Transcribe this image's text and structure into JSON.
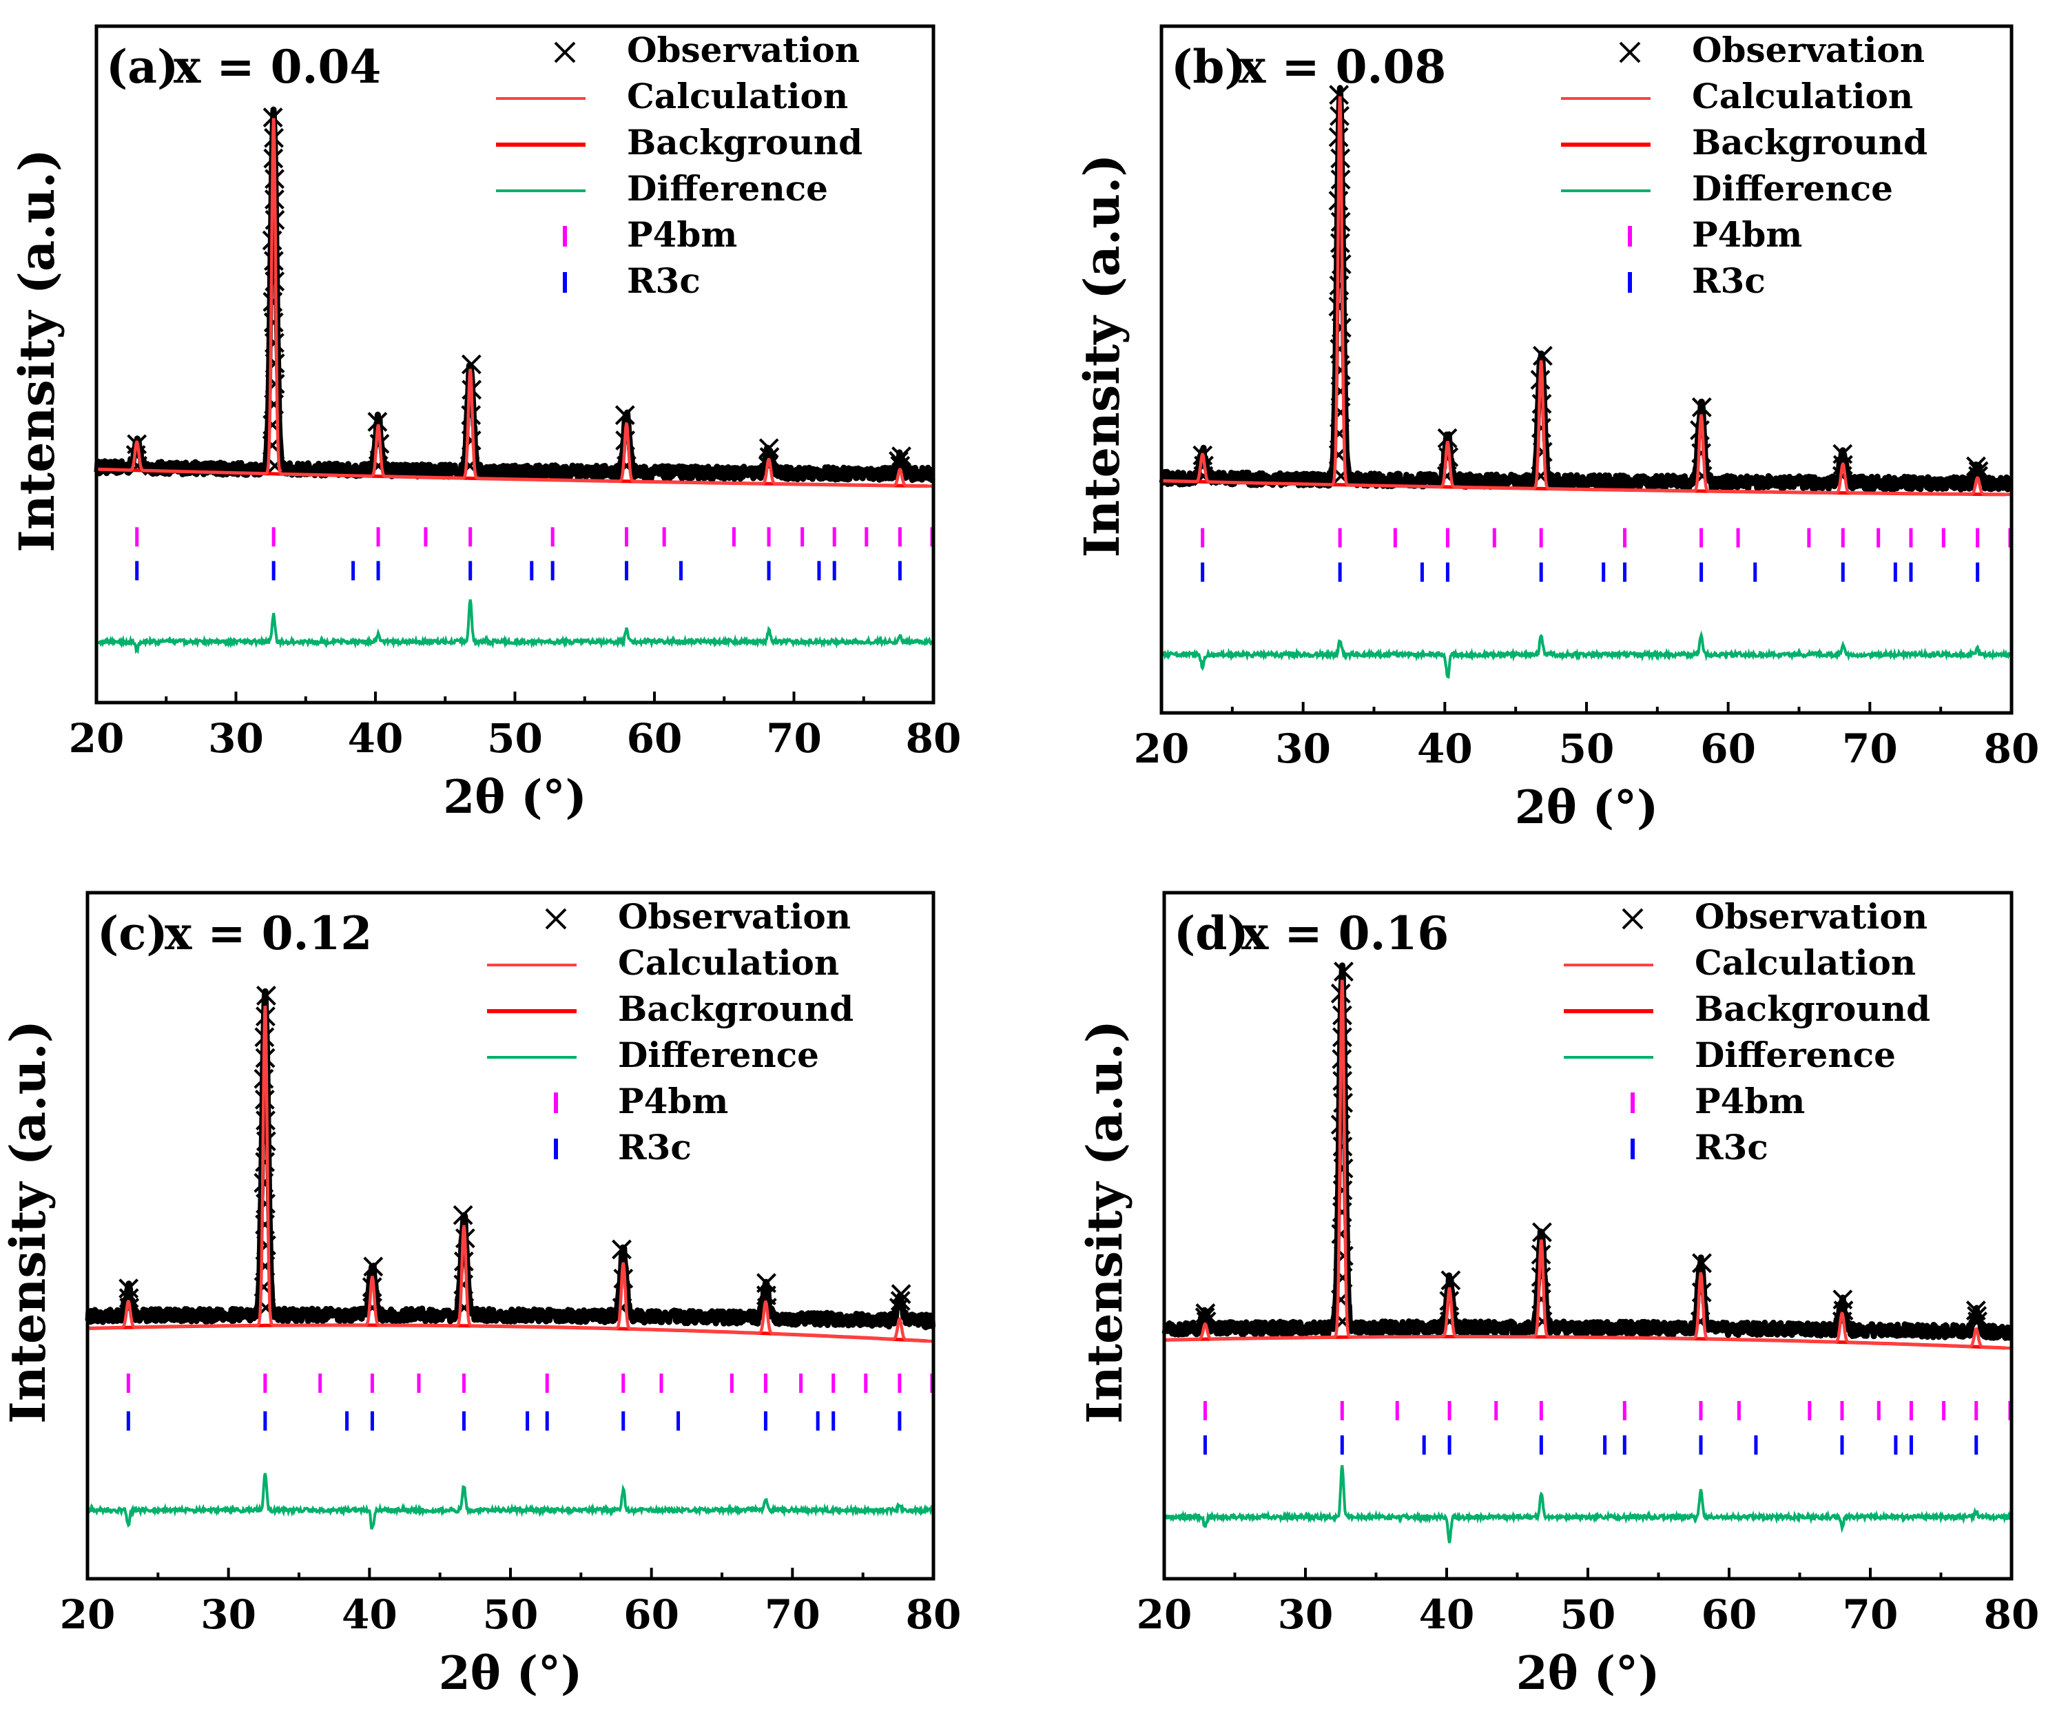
{
  "figure": {
    "colors": {
      "observation": "#000000",
      "calculation": "#ff4040",
      "background": "#ff0000",
      "difference": "#00b06b",
      "p4bm": "#ff00ff",
      "r3c": "#0000ff",
      "axes": "#000000"
    }
  },
  "chart_data": [
    {
      "type": "line",
      "panel_label": "(a)",
      "title": "x = 0.04",
      "xlabel": "2θ (°)",
      "ylabel": "Intensity (a.u.)",
      "xlim": [
        20,
        80
      ],
      "ylim": [
        0,
        100
      ],
      "xticks": [
        "20",
        "30",
        "40",
        "50",
        "60",
        "70",
        "80"
      ],
      "legend": [
        "Observation",
        "Calculation",
        "Background",
        "Difference",
        "P4bm",
        "R3c"
      ],
      "legend_position": "top-right",
      "baseline": 33.0,
      "peaks": [
        [
          22.9,
          4.2
        ],
        [
          32.7,
          52.5
        ],
        [
          40.2,
          7.5
        ],
        [
          46.8,
          16.0
        ],
        [
          58.0,
          8.5
        ],
        [
          68.2,
          3.6
        ],
        [
          77.6,
          2.4
        ]
      ],
      "background": {
        "start": 34.5,
        "mid": 32.8,
        "end": 32.0
      },
      "difference": {
        "level": 9.0,
        "spikes": [
          [
            22.9,
            -1.2
          ],
          [
            32.7,
            4.2
          ],
          [
            40.2,
            1.0
          ],
          [
            46.8,
            6.2
          ],
          [
            58.0,
            1.8
          ],
          [
            68.2,
            1.6
          ],
          [
            77.6,
            0.8
          ]
        ]
      },
      "p4bm_ticks": [
        22.9,
        32.7,
        40.2,
        43.6,
        46.8,
        52.7,
        58.0,
        60.7,
        65.7,
        68.2,
        70.6,
        72.9,
        75.2,
        77.6,
        79.9
      ],
      "r3c_ticks": [
        22.9,
        32.7,
        38.4,
        40.2,
        46.8,
        51.2,
        52.7,
        58.0,
        61.9,
        68.2,
        71.8,
        72.9,
        77.6
      ],
      "p4bm_level": 24.5,
      "r3c_level": 19.5
    },
    {
      "type": "line",
      "panel_label": "(b)",
      "title": "x = 0.08",
      "xlabel": "2θ (°)",
      "ylabel": "Intensity (a.u.)",
      "xlim": [
        20,
        80
      ],
      "ylim": [
        0,
        100
      ],
      "xticks": [
        "20",
        "30",
        "40",
        "50",
        "60",
        "70",
        "80"
      ],
      "legend": [
        "Observation",
        "Calculation",
        "Background",
        "Difference",
        "P4bm",
        "R3c"
      ],
      "legend_position": "top-right",
      "baseline": 32.5,
      "peaks": [
        [
          22.9,
          4.0
        ],
        [
          32.6,
          56.5
        ],
        [
          40.2,
          6.5
        ],
        [
          46.8,
          18.5
        ],
        [
          58.1,
          11.0
        ],
        [
          68.1,
          4.2
        ],
        [
          77.6,
          2.4
        ]
      ],
      "background": {
        "start": 33.8,
        "mid": 32.3,
        "end": 31.8
      },
      "difference": {
        "level": 8.5,
        "spikes": [
          [
            22.9,
            -2.0
          ],
          [
            32.6,
            2.2
          ],
          [
            40.2,
            -3.5
          ],
          [
            46.8,
            2.8
          ],
          [
            58.1,
            3.0
          ],
          [
            68.1,
            1.4
          ],
          [
            77.6,
            0.8
          ]
        ]
      },
      "p4bm_ticks": [
        22.9,
        32.6,
        36.5,
        40.2,
        43.5,
        46.8,
        52.7,
        58.1,
        60.7,
        65.7,
        68.1,
        70.6,
        72.9,
        75.2,
        77.6,
        79.9
      ],
      "r3c_ticks": [
        22.9,
        32.6,
        38.4,
        40.2,
        46.8,
        51.2,
        52.7,
        58.1,
        61.9,
        68.1,
        71.8,
        72.9,
        77.6
      ],
      "p4bm_level": 25.5,
      "r3c_level": 20.5
    },
    {
      "type": "line",
      "panel_label": "(c)",
      "title": "x = 0.12",
      "xlabel": "2θ (°)",
      "ylabel": "Intensity (a.u.)",
      "xlim": [
        20,
        80
      ],
      "ylim": [
        0,
        100
      ],
      "xticks": [
        "20",
        "30",
        "40",
        "50",
        "60",
        "70",
        "80"
      ],
      "legend": [
        "Observation",
        "Calculation",
        "Background",
        "Difference",
        "P4bm",
        "R3c"
      ],
      "legend_position": "top-right",
      "baseline": 37.5,
      "peaks": [
        [
          22.9,
          3.8
        ],
        [
          32.6,
          46.5
        ],
        [
          40.2,
          7.0
        ],
        [
          46.7,
          14.5
        ],
        [
          58.0,
          9.5
        ],
        [
          68.1,
          4.6
        ],
        [
          77.6,
          3.0
        ]
      ],
      "background": {
        "start": 36.5,
        "mid": 38.0,
        "end": 34.6
      },
      "difference": {
        "level": 10.0,
        "spikes": [
          [
            22.9,
            -2.2
          ],
          [
            32.6,
            5.5
          ],
          [
            40.2,
            -2.8
          ],
          [
            46.7,
            3.6
          ],
          [
            58.0,
            3.0
          ],
          [
            68.1,
            1.6
          ],
          [
            77.6,
            0.8
          ]
        ]
      },
      "p4bm_ticks": [
        22.9,
        32.6,
        36.5,
        40.2,
        43.5,
        46.7,
        52.6,
        58.0,
        60.7,
        65.7,
        68.1,
        70.6,
        72.9,
        75.2,
        77.6,
        79.9
      ],
      "r3c_ticks": [
        22.9,
        32.6,
        38.4,
        40.2,
        46.7,
        51.2,
        52.6,
        58.0,
        61.9,
        68.1,
        71.8,
        72.9,
        77.6
      ],
      "p4bm_level": 28.5,
      "r3c_level": 23.0
    },
    {
      "type": "line",
      "panel_label": "(d)",
      "title": "x = 0.16",
      "xlabel": "2θ (°)",
      "ylabel": "Intensity (a.u.)",
      "xlim": [
        20,
        80
      ],
      "ylim": [
        0,
        100
      ],
      "xticks": [
        "20",
        "30",
        "40",
        "50",
        "60",
        "70",
        "80"
      ],
      "legend": [
        "Observation",
        "Calculation",
        "Background",
        "Difference",
        "P4bm",
        "R3c"
      ],
      "legend_position": "top-right",
      "baseline": 35.5,
      "peaks": [
        [
          22.9,
          2.2
        ],
        [
          32.6,
          52.0
        ],
        [
          40.2,
          7.0
        ],
        [
          46.7,
          14.0
        ],
        [
          58.0,
          9.5
        ],
        [
          68.0,
          4.2
        ],
        [
          77.5,
          2.6
        ]
      ],
      "background": {
        "start": 34.8,
        "mid": 36.2,
        "end": 33.6
      },
      "difference": {
        "level": 9.0,
        "spikes": [
          [
            22.9,
            -1.5
          ],
          [
            32.6,
            7.5
          ],
          [
            40.2,
            -3.5
          ],
          [
            46.7,
            3.5
          ],
          [
            58.0,
            4.0
          ],
          [
            68.0,
            -1.4
          ],
          [
            77.5,
            0.8
          ]
        ]
      },
      "p4bm_ticks": [
        22.9,
        32.6,
        36.5,
        40.2,
        43.5,
        46.7,
        52.6,
        58.0,
        60.7,
        65.7,
        68.0,
        70.6,
        72.9,
        75.2,
        77.5,
        79.9
      ],
      "r3c_ticks": [
        22.9,
        32.6,
        38.4,
        40.2,
        46.7,
        51.2,
        52.6,
        58.0,
        61.9,
        68.0,
        71.8,
        72.9,
        77.5
      ],
      "p4bm_level": 24.5,
      "r3c_level": 19.5
    }
  ]
}
